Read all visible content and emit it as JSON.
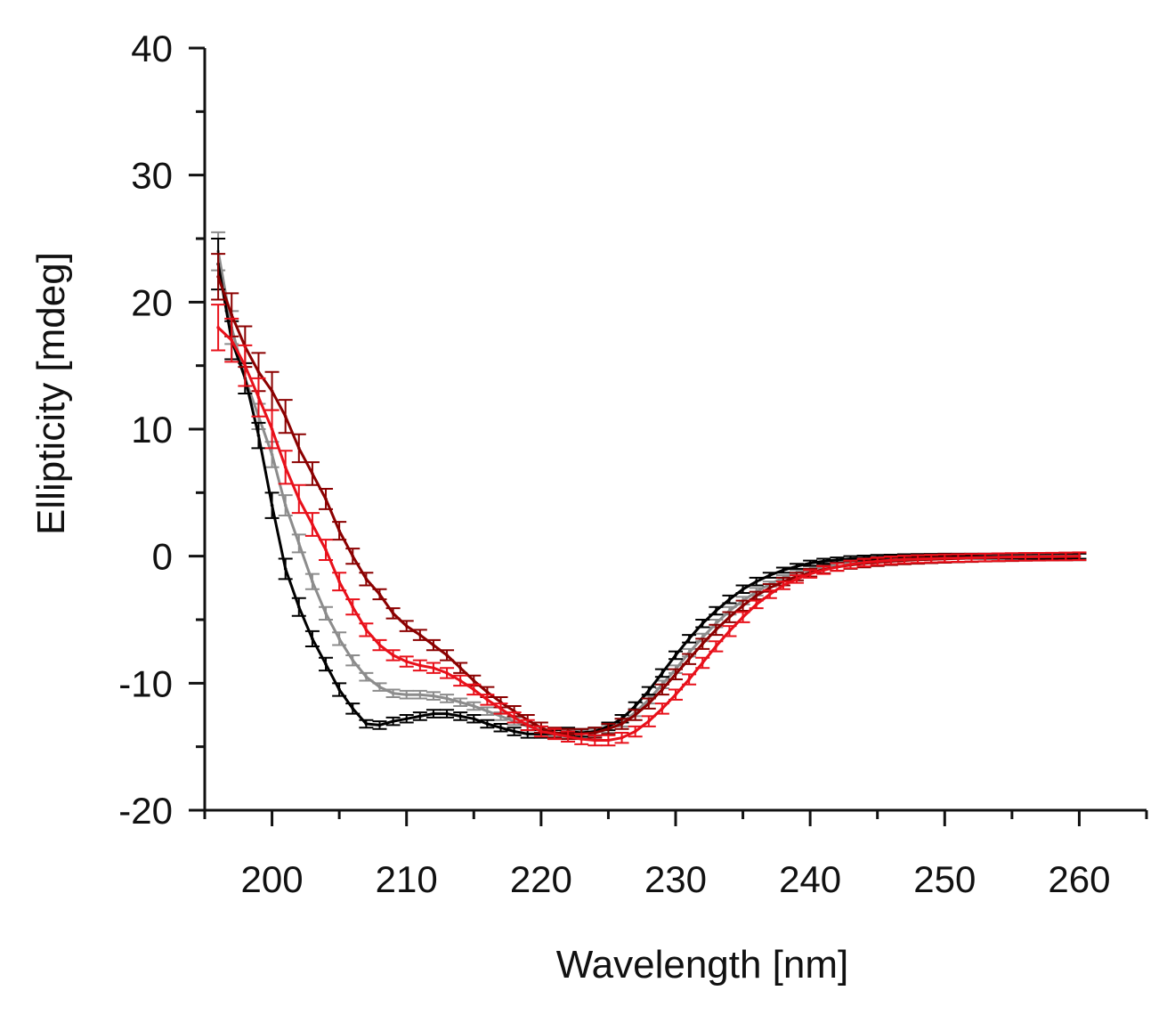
{
  "chart_data": {
    "type": "line",
    "title": "",
    "xlabel": "Wavelength [nm]",
    "ylabel": "Ellipticity [mdeg]",
    "xlim": [
      195,
      265
    ],
    "ylim": [
      -20,
      40
    ],
    "x_ticks": [
      200,
      210,
      220,
      230,
      240,
      250,
      260
    ],
    "x_tick_labels": [
      "200",
      "210",
      "220",
      "230",
      "240",
      "250",
      "260"
    ],
    "y_ticks": [
      40,
      30,
      20,
      10,
      0,
      -10,
      -20
    ],
    "y_tick_labels": [
      "40",
      "30",
      "20",
      "10",
      "0",
      "-10",
      "-20"
    ],
    "grid": false,
    "legend": "none",
    "x": [
      196,
      197,
      198,
      199,
      200,
      201,
      202,
      203,
      204,
      205,
      206,
      207,
      208,
      209,
      210,
      211,
      212,
      213,
      214,
      215,
      216,
      217,
      218,
      219,
      220,
      221,
      222,
      223,
      224,
      225,
      226,
      227,
      228,
      229,
      230,
      231,
      232,
      233,
      234,
      235,
      236,
      237,
      238,
      239,
      240,
      241,
      242,
      243,
      244,
      245,
      246,
      247,
      248,
      249,
      250,
      251,
      252,
      253,
      254,
      255,
      256,
      257,
      258,
      259,
      260
    ],
    "series": [
      {
        "name": "black",
        "color": "#000000",
        "values": [
          23.0,
          17.0,
          14.0,
          9.5,
          4.0,
          -1.0,
          -4.0,
          -6.5,
          -8.5,
          -10.5,
          -12.0,
          -13.2,
          -13.3,
          -13.0,
          -12.8,
          -12.6,
          -12.4,
          -12.4,
          -12.6,
          -12.8,
          -13.2,
          -13.5,
          -13.8,
          -14.0,
          -14.0,
          -14.0,
          -13.8,
          -13.9,
          -13.8,
          -13.4,
          -12.8,
          -11.8,
          -10.6,
          -9.2,
          -7.8,
          -6.5,
          -5.3,
          -4.3,
          -3.4,
          -2.6,
          -2.0,
          -1.5,
          -1.1,
          -0.8,
          -0.55,
          -0.4,
          -0.3,
          -0.2,
          -0.15,
          -0.1,
          -0.08,
          -0.05,
          -0.03,
          -0.02,
          0.0,
          0.0,
          0.0,
          0.0,
          0.0,
          0.0,
          0.0,
          0.0,
          0.0,
          0.0,
          0.0
        ],
        "errors": [
          2.0,
          1.5,
          1.2,
          1.0,
          1.0,
          0.8,
          0.7,
          0.6,
          0.5,
          0.5,
          0.4,
          0.3,
          0.3,
          0.3,
          0.3,
          0.3,
          0.3,
          0.3,
          0.3,
          0.3,
          0.3,
          0.3,
          0.3,
          0.3,
          0.3,
          0.3,
          0.3,
          0.3,
          0.3,
          0.3,
          0.3,
          0.3,
          0.3,
          0.3,
          0.3,
          0.3,
          0.3,
          0.3,
          0.3,
          0.3,
          0.3,
          0.2,
          0.2,
          0.2,
          0.2,
          0.2,
          0.2,
          0.2,
          0.2,
          0.2,
          0.2,
          0.2,
          0.2,
          0.2,
          0.2,
          0.2,
          0.2,
          0.2,
          0.2,
          0.2,
          0.2,
          0.2,
          0.2,
          0.2,
          0.2
        ]
      },
      {
        "name": "gray",
        "color": "#8c8c8c",
        "values": [
          24.0,
          18.0,
          14.0,
          11.0,
          8.0,
          4.0,
          1.0,
          -2.0,
          -4.5,
          -6.5,
          -8.2,
          -9.5,
          -10.3,
          -10.8,
          -10.9,
          -10.9,
          -11.0,
          -11.2,
          -11.5,
          -11.8,
          -12.2,
          -12.6,
          -13.0,
          -13.4,
          -13.7,
          -13.9,
          -14.0,
          -14.0,
          -13.9,
          -13.6,
          -13.1,
          -12.3,
          -11.3,
          -10.1,
          -8.9,
          -7.6,
          -6.4,
          -5.3,
          -4.3,
          -3.5,
          -2.8,
          -2.2,
          -1.7,
          -1.3,
          -1.0,
          -0.75,
          -0.55,
          -0.4,
          -0.3,
          -0.2,
          -0.15,
          -0.1,
          -0.08,
          -0.05,
          -0.03,
          -0.02,
          0.0,
          0.0,
          0.0,
          0.0,
          0.0,
          0.0,
          0.0,
          0.0,
          0.0
        ],
        "errors": [
          1.5,
          1.3,
          1.2,
          1.0,
          1.0,
          0.8,
          0.7,
          0.6,
          0.5,
          0.5,
          0.4,
          0.3,
          0.3,
          0.3,
          0.3,
          0.3,
          0.3,
          0.3,
          0.3,
          0.3,
          0.3,
          0.3,
          0.3,
          0.3,
          0.3,
          0.3,
          0.3,
          0.3,
          0.3,
          0.3,
          0.3,
          0.3,
          0.3,
          0.3,
          0.3,
          0.3,
          0.3,
          0.3,
          0.3,
          0.3,
          0.3,
          0.2,
          0.2,
          0.2,
          0.2,
          0.2,
          0.2,
          0.2,
          0.2,
          0.2,
          0.2,
          0.2,
          0.2,
          0.2,
          0.2,
          0.2,
          0.2,
          0.2,
          0.2,
          0.2,
          0.2,
          0.2,
          0.2,
          0.2,
          0.2
        ]
      },
      {
        "name": "red",
        "color": "#e8101a",
        "values": [
          18.0,
          17.0,
          15.0,
          12.5,
          10.0,
          7.0,
          4.5,
          2.5,
          0.5,
          -2.0,
          -4.0,
          -5.8,
          -7.0,
          -7.8,
          -8.3,
          -8.6,
          -8.8,
          -9.2,
          -9.8,
          -10.5,
          -11.3,
          -12.0,
          -12.7,
          -13.3,
          -13.8,
          -14.0,
          -14.2,
          -14.4,
          -14.5,
          -14.5,
          -14.3,
          -13.8,
          -13.0,
          -12.0,
          -10.9,
          -9.7,
          -8.4,
          -7.1,
          -5.9,
          -4.8,
          -3.8,
          -3.0,
          -2.3,
          -1.8,
          -1.4,
          -1.1,
          -0.85,
          -0.65,
          -0.5,
          -0.4,
          -0.32,
          -0.26,
          -0.22,
          -0.19,
          -0.16,
          -0.14,
          -0.12,
          -0.1,
          -0.08,
          -0.06,
          -0.05,
          -0.04,
          -0.03,
          -0.02,
          0.0
        ],
        "errors": [
          1.8,
          1.7,
          1.6,
          1.5,
          1.5,
          1.3,
          1.1,
          0.9,
          0.8,
          0.7,
          0.6,
          0.5,
          0.4,
          0.4,
          0.4,
          0.4,
          0.4,
          0.4,
          0.4,
          0.4,
          0.4,
          0.4,
          0.4,
          0.4,
          0.4,
          0.4,
          0.4,
          0.4,
          0.4,
          0.4,
          0.4,
          0.4,
          0.4,
          0.4,
          0.4,
          0.4,
          0.4,
          0.4,
          0.4,
          0.4,
          0.3,
          0.3,
          0.3,
          0.3,
          0.3,
          0.3,
          0.3,
          0.3,
          0.3,
          0.3,
          0.3,
          0.3,
          0.3,
          0.3,
          0.3,
          0.3,
          0.3,
          0.3,
          0.3,
          0.3,
          0.3,
          0.3,
          0.3,
          0.3,
          0.3
        ]
      },
      {
        "name": "dark-red",
        "color": "#8b0000",
        "values": [
          22.0,
          19.0,
          16.5,
          14.5,
          13.0,
          11.0,
          8.5,
          6.5,
          4.5,
          2.0,
          0.0,
          -1.8,
          -3.0,
          -4.5,
          -5.5,
          -6.2,
          -7.0,
          -7.8,
          -8.8,
          -9.8,
          -10.7,
          -11.5,
          -12.2,
          -12.9,
          -13.5,
          -13.9,
          -14.0,
          -14.0,
          -13.9,
          -13.6,
          -13.2,
          -12.5,
          -11.6,
          -10.5,
          -9.3,
          -8.1,
          -6.9,
          -5.8,
          -4.8,
          -3.9,
          -3.1,
          -2.5,
          -2.0,
          -1.6,
          -1.3,
          -1.05,
          -0.85,
          -0.7,
          -0.58,
          -0.48,
          -0.4,
          -0.34,
          -0.29,
          -0.25,
          -0.21,
          -0.18,
          -0.15,
          -0.12,
          -0.1,
          -0.08,
          -0.06,
          -0.05,
          -0.04,
          -0.03,
          -0.02
        ],
        "errors": [
          1.8,
          1.7,
          1.6,
          1.5,
          1.5,
          1.3,
          1.1,
          0.9,
          0.8,
          0.7,
          0.6,
          0.5,
          0.4,
          0.4,
          0.4,
          0.4,
          0.4,
          0.4,
          0.4,
          0.4,
          0.4,
          0.4,
          0.4,
          0.4,
          0.4,
          0.4,
          0.4,
          0.4,
          0.4,
          0.4,
          0.4,
          0.4,
          0.4,
          0.4,
          0.4,
          0.4,
          0.4,
          0.4,
          0.4,
          0.4,
          0.3,
          0.3,
          0.3,
          0.3,
          0.3,
          0.3,
          0.3,
          0.3,
          0.3,
          0.3,
          0.3,
          0.3,
          0.3,
          0.3,
          0.3,
          0.3,
          0.3,
          0.3,
          0.3,
          0.3,
          0.3,
          0.3,
          0.3,
          0.3,
          0.3
        ]
      }
    ]
  }
}
